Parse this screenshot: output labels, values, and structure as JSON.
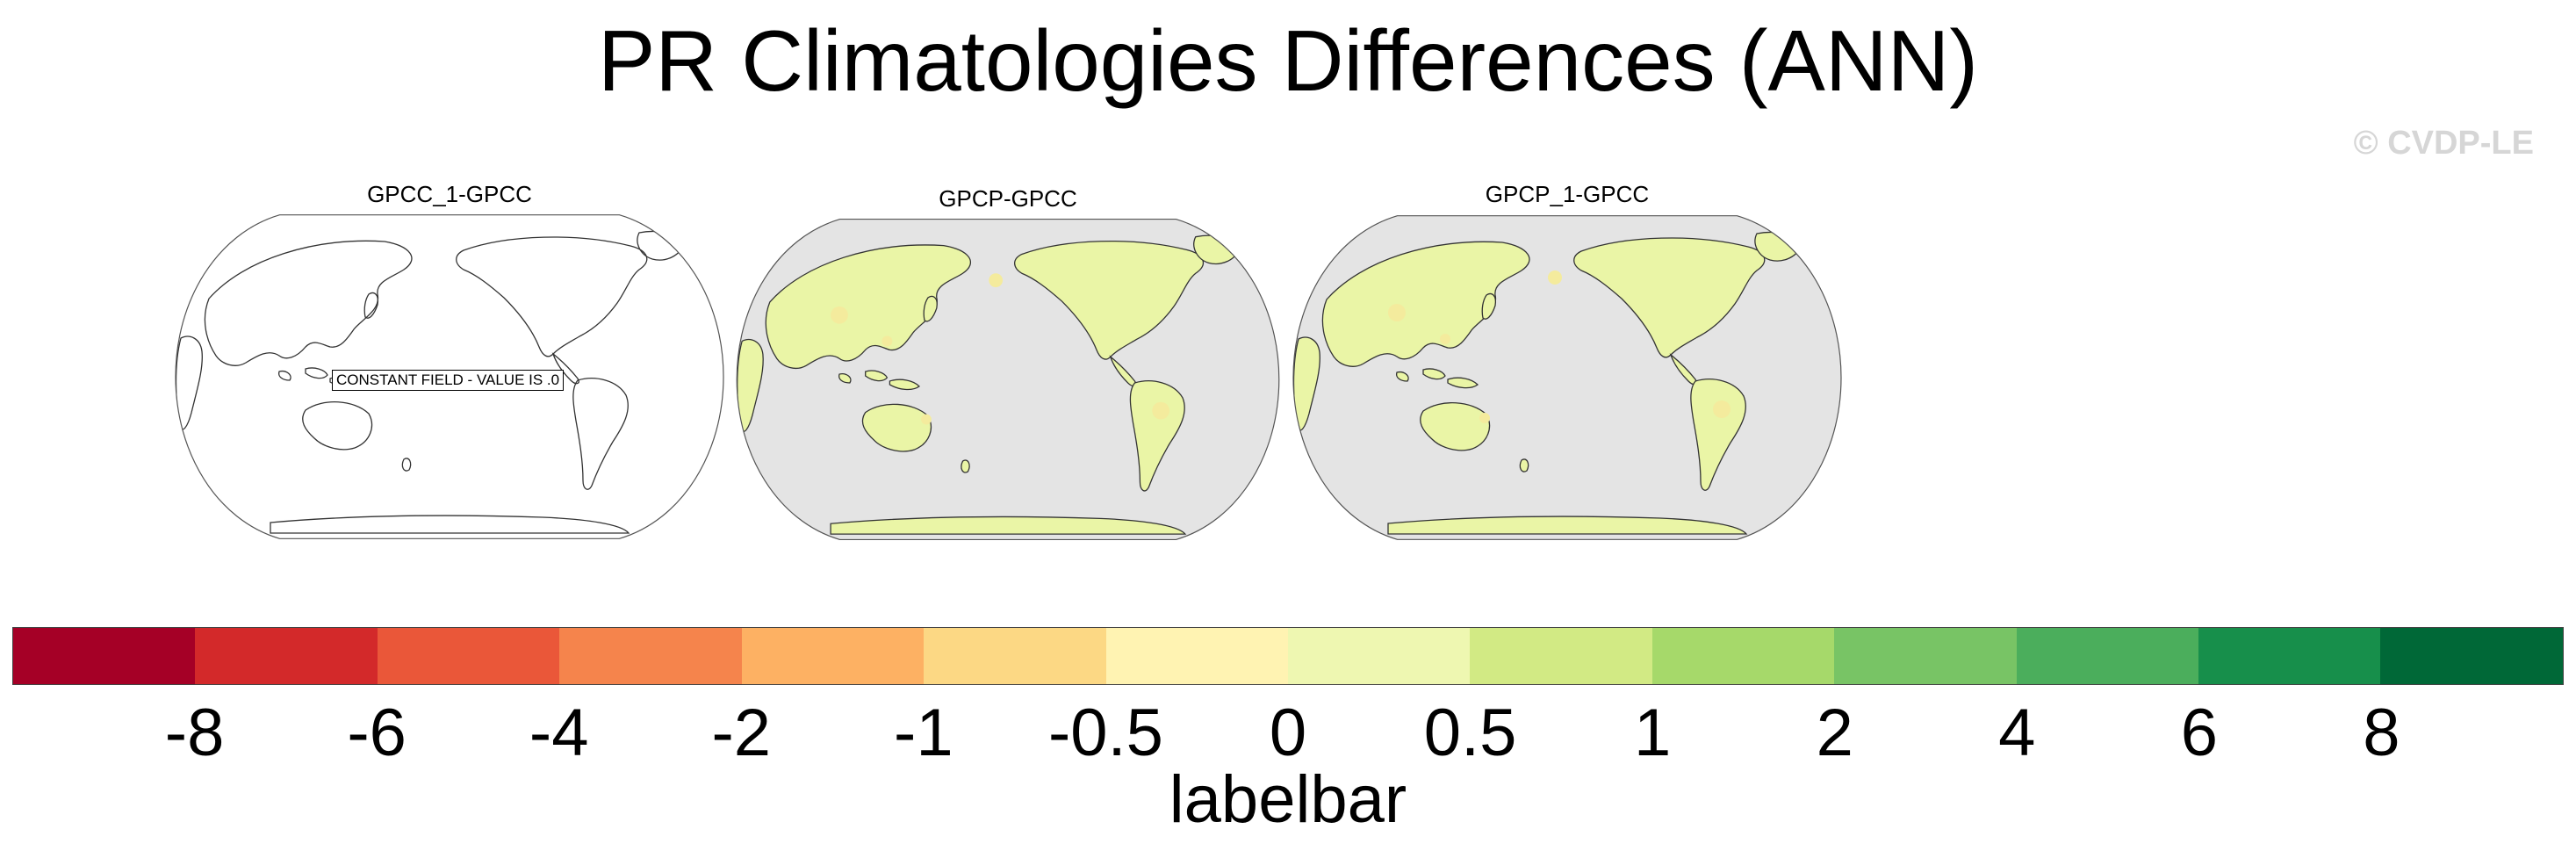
{
  "title": "PR Climatologies Differences (ANN)",
  "credit": "© CVDP-LE",
  "panels": [
    {
      "title": "GPCC_1-GPCC",
      "filled": false,
      "note": "CONSTANT FIELD - VALUE IS .0"
    },
    {
      "title": "GPCP-GPCC",
      "filled": true
    },
    {
      "title": "GPCP_1-GPCC",
      "filled": true
    }
  ],
  "colorbar": {
    "colors": [
      "#a50026",
      "#d3292a",
      "#ea5739",
      "#f5844c",
      "#fdb163",
      "#fcd884",
      "#fff3b2",
      "#eef7b1",
      "#d2ea84",
      "#a6d96a",
      "#78c465",
      "#4bae5c",
      "#178f4b",
      "#006837"
    ],
    "ticks": [
      "-8",
      "-6",
      "-4",
      "-2",
      "-1",
      "-0.5",
      "0",
      "0.5",
      "1",
      "2",
      "4",
      "6",
      "8"
    ],
    "label": "labelbar"
  },
  "colors": {
    "ocean": "#e4e4e4",
    "land_fill": "#eaf5a6",
    "land_wet": "#f4eb9d",
    "coast": "#333333"
  }
}
